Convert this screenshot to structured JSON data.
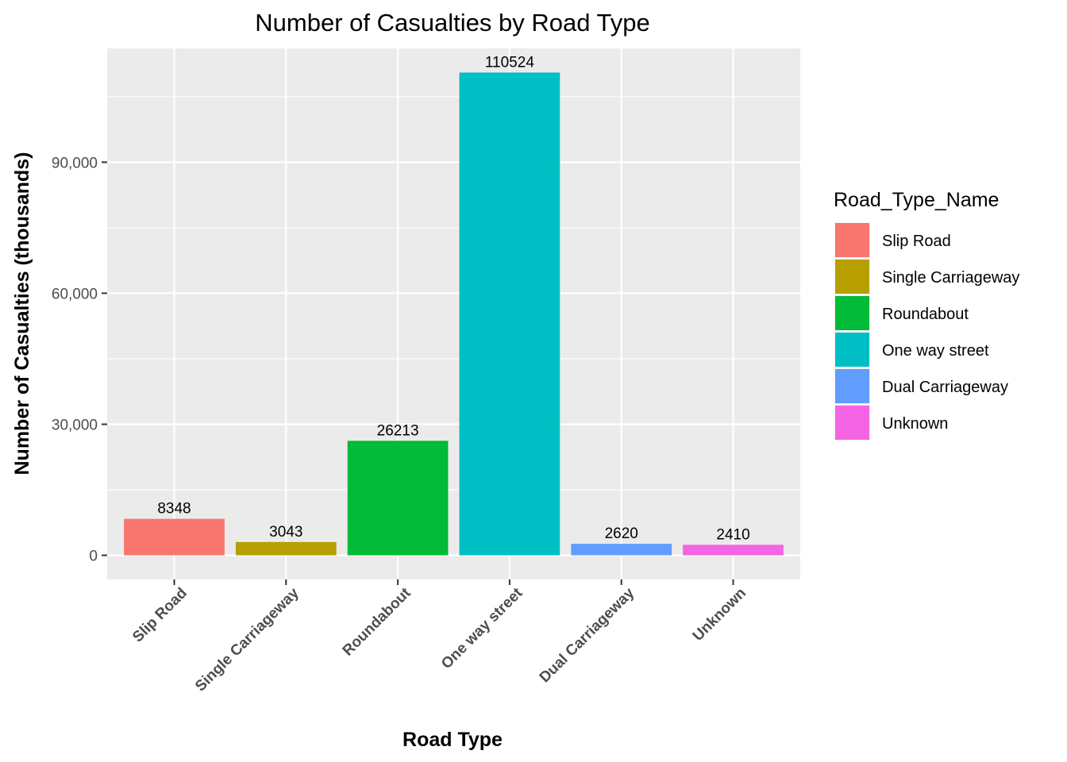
{
  "chart_data": {
    "type": "bar",
    "title": "Number of Casualties by Road Type",
    "xlabel": "Road Type",
    "ylabel": "Number of Casualties (thousands)",
    "categories": [
      "Slip Road",
      "Single Carriageway",
      "Roundabout",
      "One way street",
      "Dual Carriageway",
      "Unknown"
    ],
    "values": [
      8348,
      3043,
      26213,
      110524,
      2620,
      2410
    ],
    "data_labels": [
      "8348",
      "3043",
      "26213",
      "110524",
      "2620",
      "2410"
    ],
    "colors": [
      "#F8766D",
      "#B79F00",
      "#00BA38",
      "#00BFC4",
      "#619CFF",
      "#F564E3"
    ],
    "y_ticks": [
      0,
      30000,
      60000,
      90000
    ],
    "y_tick_labels": [
      "0",
      "30,000",
      "60,000",
      "90,000"
    ],
    "ylim": [
      -5526,
      116050
    ],
    "grid": true,
    "panel_background": "#EBEBEB",
    "legend": {
      "title": "Road_Type_Name",
      "position": "right",
      "entries": [
        "Slip Road",
        "Single Carriageway",
        "Roundabout",
        "One way street",
        "Dual Carriageway",
        "Unknown"
      ]
    }
  }
}
